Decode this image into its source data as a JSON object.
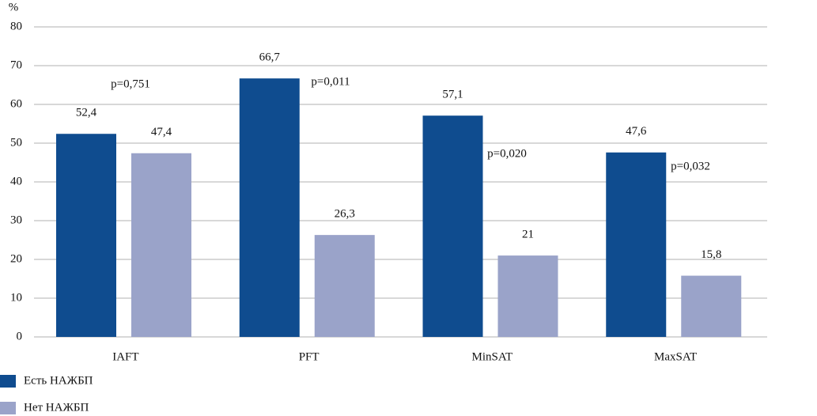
{
  "chart_data": {
    "type": "bar",
    "y_label": "%",
    "categories": [
      "IAFT",
      "PFT",
      "MinSAT",
      "MaxSAT"
    ],
    "series": [
      {
        "name": "Есть НАЖБП",
        "color": "#0f4c8f",
        "values": [
          52.4,
          66.7,
          57.1,
          47.6
        ],
        "value_labels": [
          "52,4",
          "66,7",
          "57,1",
          "47,6"
        ]
      },
      {
        "name": "Нет НАЖБП",
        "color": "#9aa3c9",
        "values": [
          47.4,
          26.3,
          21,
          15.8
        ],
        "value_labels": [
          "47,4",
          "26,3",
          "21",
          "15,8"
        ]
      }
    ],
    "annotations": [
      "p=0,751",
      "p=0,011",
      "p=0,020",
      "p=0,032"
    ],
    "ylim": [
      0,
      80
    ],
    "yticks": [
      0,
      10,
      20,
      30,
      40,
      50,
      60,
      70,
      80
    ],
    "grid": true
  }
}
